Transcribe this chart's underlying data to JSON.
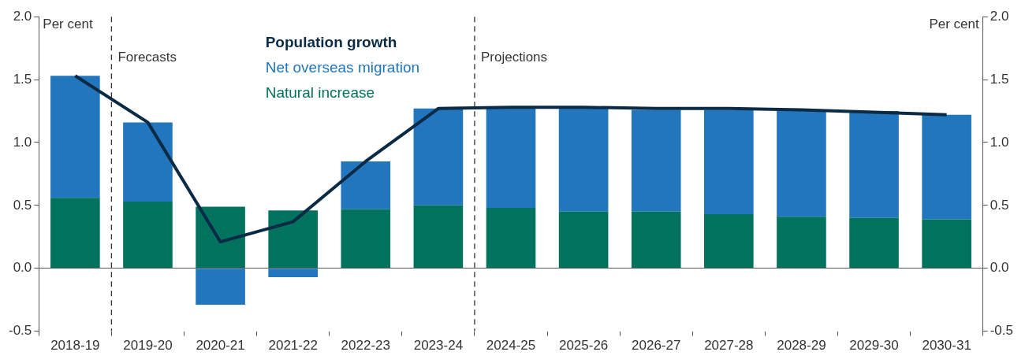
{
  "chart_data": {
    "type": "bar",
    "stacked": true,
    "ylabel": "Per cent",
    "y2label": "Per cent",
    "categories": [
      "2018-19",
      "2019-20",
      "2020-21",
      "2021-22",
      "2022-23",
      "2023-24",
      "2024-25",
      "2025-26",
      "2026-27",
      "2027-28",
      "2028-29",
      "2029-30",
      "2030-31"
    ],
    "series": [
      {
        "name": "Natural increase",
        "color": "#00725e",
        "values": [
          0.56,
          0.53,
          0.49,
          0.46,
          0.47,
          0.5,
          0.48,
          0.45,
          0.45,
          0.43,
          0.41,
          0.4,
          0.39
        ]
      },
      {
        "name": "Net overseas migration",
        "color": "#2176bd",
        "values": [
          0.97,
          0.63,
          -0.29,
          -0.07,
          0.38,
          0.77,
          0.79,
          0.82,
          0.81,
          0.83,
          0.84,
          0.85,
          0.83
        ]
      },
      {
        "name": "Population growth",
        "type": "line",
        "color": "#0b2a45",
        "marker": "none",
        "values": [
          1.53,
          1.16,
          0.21,
          0.37,
          0.85,
          1.27,
          1.28,
          1.28,
          1.27,
          1.27,
          1.26,
          1.24,
          1.22
        ]
      }
    ],
    "ylim": [
      -0.5,
      2
    ],
    "yticks": [
      {
        "value": -0.5,
        "label": "-0.5"
      },
      {
        "value": 0,
        "label": "0.0"
      },
      {
        "value": 0.5,
        "label": "0.5"
      },
      {
        "value": 1,
        "label": "1.0"
      },
      {
        "value": 1.5,
        "label": "1.5"
      },
      {
        "value": 2,
        "label": "2.0"
      }
    ],
    "y2lim": [
      -0.5,
      2
    ],
    "y2ticks": [
      {
        "value": -0.5,
        "label": "-0.5"
      },
      {
        "value": 0,
        "label": "0.0"
      },
      {
        "value": 0.5,
        "label": "0.5"
      },
      {
        "value": 1,
        "label": "1.0"
      },
      {
        "value": 1.5,
        "label": "1.5"
      },
      {
        "value": 2,
        "label": "2.0"
      }
    ],
    "annotations": [
      "Forecasts",
      "Projections"
    ],
    "legend": "top",
    "grid": false
  }
}
